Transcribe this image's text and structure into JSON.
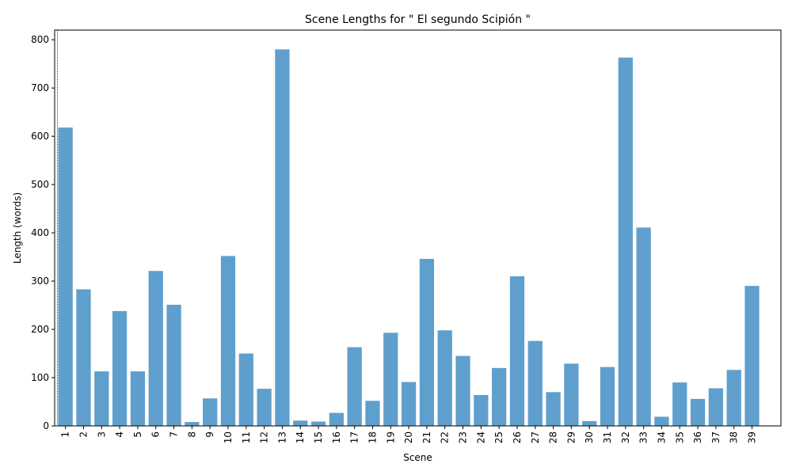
{
  "chart_data": {
    "type": "bar",
    "title": "Scene Lengths for \" El segundo Scipión \"",
    "xlabel": "Scene",
    "ylabel": "Length (words)",
    "ylim": [
      0,
      820
    ],
    "yticks": [
      0,
      100,
      200,
      300,
      400,
      500,
      600,
      700,
      800
    ],
    "bar_color": "#5f9fcd",
    "marker_line": {
      "x": 1,
      "style": "dotted",
      "color": "#000000"
    },
    "grid": false,
    "categories": [
      "1",
      "2",
      "3",
      "4",
      "5",
      "6",
      "7",
      "8",
      "9",
      "10",
      "11",
      "12",
      "13",
      "14",
      "15",
      "16",
      "17",
      "18",
      "19",
      "20",
      "21",
      "22",
      "23",
      "24",
      "25",
      "26",
      "27",
      "28",
      "29",
      "30",
      "31",
      "32",
      "33",
      "34",
      "35",
      "36",
      "37",
      "38",
      "39"
    ],
    "values": [
      618,
      283,
      113,
      238,
      113,
      321,
      251,
      8,
      57,
      352,
      150,
      77,
      780,
      11,
      9,
      27,
      163,
      52,
      193,
      91,
      346,
      198,
      145,
      64,
      120,
      310,
      176,
      70,
      129,
      10,
      122,
      763,
      411,
      19,
      90,
      56,
      78,
      116,
      290
    ]
  }
}
